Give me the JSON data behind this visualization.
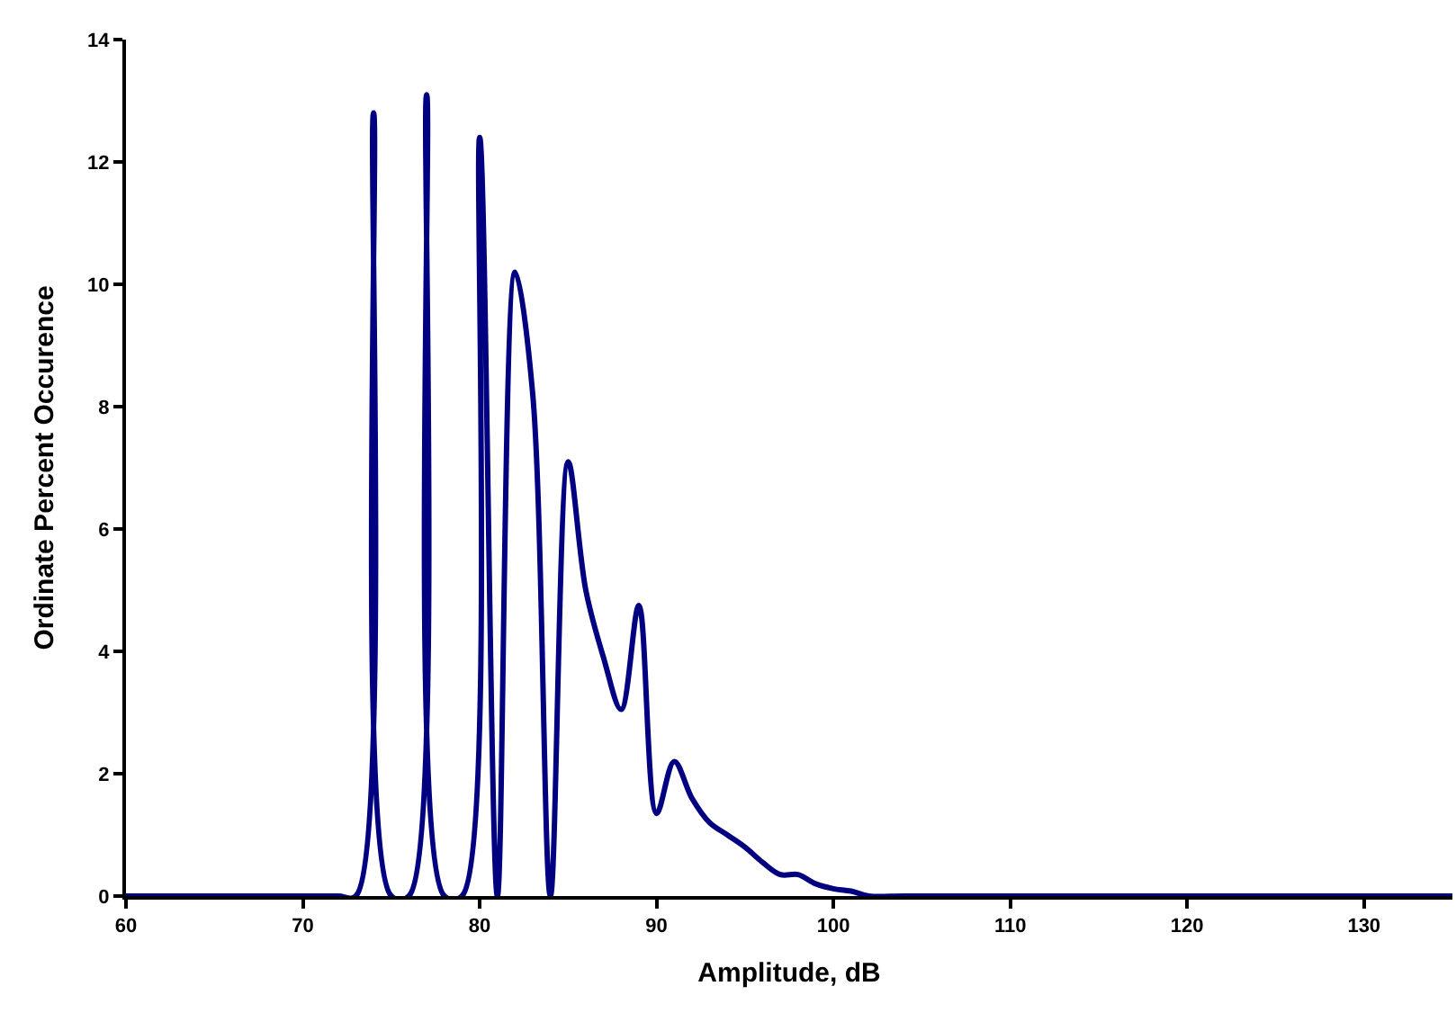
{
  "chart_data": {
    "type": "line",
    "xlabel": "Amplitude, dB",
    "ylabel": "Ordinate Percent Occurence",
    "x": [
      60,
      62,
      64,
      66,
      68,
      70,
      72,
      73,
      74,
      75,
      76,
      77,
      78,
      79,
      80,
      81,
      82,
      83,
      84,
      85,
      86,
      87,
      88,
      89,
      90,
      91,
      92,
      93,
      94,
      95,
      96,
      97,
      98,
      99,
      100,
      101,
      102,
      104,
      110,
      120,
      130,
      135
    ],
    "series": [
      {
        "color": "#000080",
        "values": [
          0,
          0,
          0,
          0,
          0,
          0,
          0,
          0,
          12.8,
          0,
          0,
          13.1,
          0,
          0,
          12.4,
          0,
          10.2,
          8.2,
          0,
          7.1,
          5.0,
          3.9,
          3.05,
          4.75,
          1.35,
          2.2,
          1.6,
          1.2,
          1.0,
          0.8,
          0.55,
          0.35,
          0.35,
          0.2,
          0.12,
          0.08,
          0,
          0,
          0,
          0,
          0,
          0
        ]
      }
    ],
    "xlim": [
      60,
      135
    ],
    "xticks": [
      60,
      70,
      80,
      90,
      100,
      110,
      120,
      130
    ],
    "ylim": [
      0,
      14
    ],
    "yticks": [
      0,
      2,
      4,
      6,
      8,
      10,
      12,
      14
    ],
    "legend": false,
    "marker": "none",
    "line_style": "solid"
  }
}
